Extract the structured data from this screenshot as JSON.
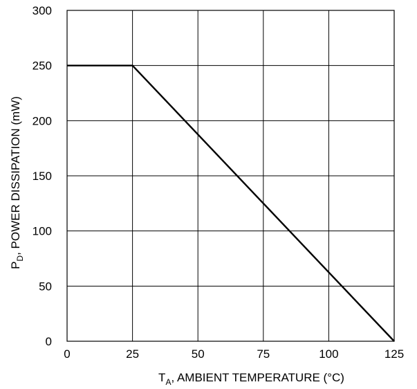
{
  "chart_data": {
    "type": "line",
    "xlabel": {
      "main": "T",
      "sub": "A",
      "rest": ", AMBIENT TEMPERATURE (°C)"
    },
    "ylabel": {
      "main": "P",
      "sub": "D",
      "rest": ", POWER DISSIPATION (mW)"
    },
    "xlim": [
      0,
      125
    ],
    "ylim": [
      0,
      300
    ],
    "xticks": [
      0,
      25,
      50,
      75,
      100,
      125
    ],
    "yticks": [
      0,
      50,
      100,
      150,
      200,
      250,
      300
    ],
    "grid": true,
    "series": [
      {
        "x": [
          0,
          25,
          125
        ],
        "y": [
          250,
          250,
          0
        ]
      }
    ]
  }
}
